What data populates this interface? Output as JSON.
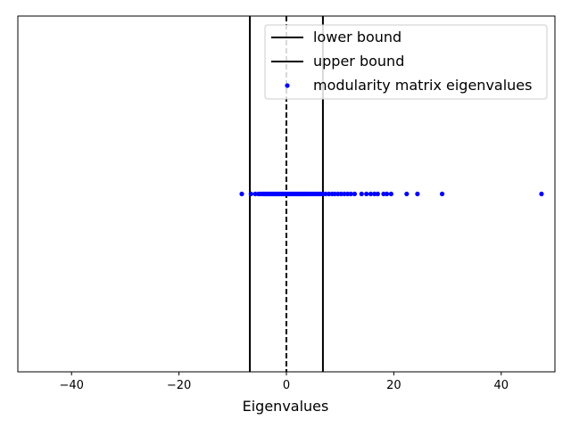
{
  "chart_data": {
    "type": "scatter",
    "title": "",
    "xlabel": "Eigenvalues",
    "ylabel": "",
    "xlim": [
      -50,
      50
    ],
    "ylim": [
      -1,
      1
    ],
    "xticks": [
      -40,
      -20,
      0,
      20,
      40
    ],
    "xtick_labels": [
      "−40",
      "−20",
      "0",
      "20",
      "40"
    ],
    "yticks": [],
    "grid": false,
    "legend_position": "top-right",
    "vlines": [
      {
        "name": "lower bound",
        "x": -6.8,
        "style": "solid",
        "color": "#000000"
      },
      {
        "name": "upper bound",
        "x": 6.8,
        "style": "solid",
        "color": "#000000"
      },
      {
        "name": "",
        "x": 0,
        "style": "dashed",
        "color": "#000000"
      }
    ],
    "series": [
      {
        "name": "modularity matrix eigenvalues",
        "color": "#0000ff",
        "y": 0,
        "x": [
          -8.3,
          -6.6,
          -5.8,
          -5.2,
          -4.8,
          -4.5,
          -4.2,
          -4.0,
          -3.8,
          -3.6,
          -3.4,
          -3.2,
          -3.0,
          -2.8,
          -2.6,
          -2.4,
          -2.2,
          -2.0,
          -1.8,
          -1.6,
          -1.4,
          -1.2,
          -1.0,
          -0.8,
          -0.6,
          -0.4,
          -0.2,
          0.0,
          0.2,
          0.4,
          0.6,
          0.8,
          1.0,
          1.2,
          1.4,
          1.6,
          1.8,
          2.0,
          2.2,
          2.4,
          2.6,
          2.8,
          3.0,
          3.2,
          3.4,
          3.6,
          3.8,
          4.0,
          4.3,
          4.6,
          4.9,
          5.2,
          5.5,
          5.8,
          6.1,
          6.4,
          6.8,
          7.3,
          7.9,
          8.5,
          9.0,
          9.6,
          10.2,
          10.8,
          11.4,
          12.0,
          12.7,
          14.0,
          14.9,
          15.7,
          16.4,
          17.0,
          18.1,
          18.7,
          19.5,
          22.4,
          24.4,
          29.0,
          47.5
        ]
      }
    ]
  }
}
